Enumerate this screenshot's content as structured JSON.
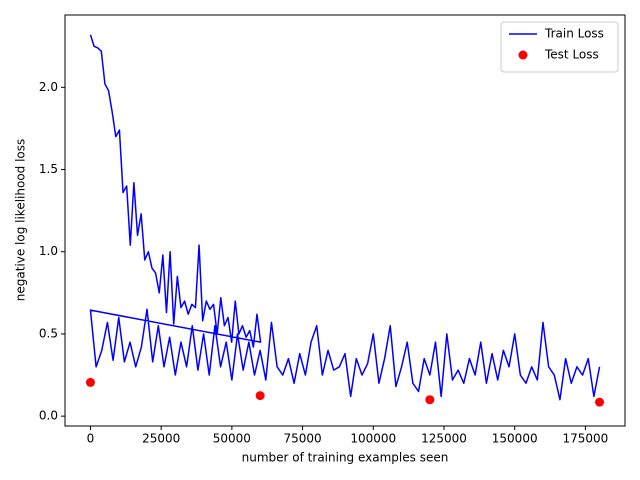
{
  "chart_data": {
    "type": "line",
    "xlabel": "number of training examples seen",
    "ylabel": "negative log likelihood loss",
    "xlim": [
      -9000,
      189000
    ],
    "ylim": [
      -0.06,
      2.44
    ],
    "xticks": [
      0,
      25000,
      50000,
      75000,
      100000,
      125000,
      150000,
      175000
    ],
    "yticks": [
      {
        "value": 0.0,
        "label": "0.0"
      },
      0.5,
      {
        "value": 1.0,
        "label": "1.0"
      },
      1.5,
      {
        "value": 2.0,
        "label": "2.0"
      }
    ],
    "legend": "upper right",
    "series": [
      {
        "name": "Train Loss",
        "type": "line",
        "color": "#0000ff",
        "x": [
          0,
          1280,
          2560,
          3840,
          5120,
          6400,
          7680,
          8960,
          10240,
          11520,
          12800,
          14080,
          15360,
          16640,
          17920,
          19200,
          20480,
          21760,
          23040,
          24320,
          25600,
          26880,
          28160,
          29440,
          30720,
          32000,
          33280,
          34560,
          35840,
          37120,
          38400,
          39680,
          40960,
          42240,
          43520,
          44800,
          46080,
          47360,
          48640,
          49920,
          51200,
          52480,
          53760,
          55040,
          56320,
          57600,
          58880,
          60160,
          0,
          2000,
          4000,
          6000,
          8000,
          10000,
          12000,
          14000,
          16000,
          18000,
          20000,
          22000,
          24000,
          26000,
          28000,
          30000,
          32000,
          34000,
          36000,
          38000,
          40000,
          42000,
          44000,
          46000,
          48000,
          50000,
          52000,
          54000,
          56000,
          58000,
          60000,
          62000,
          64000,
          66000,
          68000,
          70000,
          72000,
          74000,
          76000,
          78000,
          80000,
          82000,
          84000,
          86000,
          88000,
          90000,
          92000,
          94000,
          96000,
          98000,
          100000,
          102000,
          104000,
          106000,
          108000,
          110000,
          112000,
          114000,
          116000,
          118000,
          120000,
          122000,
          124000,
          126000,
          128000,
          130000,
          132000,
          134000,
          136000,
          138000,
          140000,
          142000,
          144000,
          146000,
          148000,
          150000,
          152000,
          154000,
          156000,
          158000,
          160000,
          162000,
          164000,
          166000,
          168000,
          170000,
          172000,
          174000,
          176000,
          178000,
          180000
        ],
        "values": [
          2.32,
          2.25,
          2.24,
          2.22,
          2.02,
          1.98,
          1.85,
          1.7,
          1.74,
          1.36,
          1.4,
          1.04,
          1.42,
          1.1,
          1.23,
          0.95,
          1.0,
          0.9,
          0.87,
          0.75,
          0.98,
          0.63,
          1.0,
          0.56,
          0.85,
          0.66,
          0.7,
          0.62,
          0.68,
          0.66,
          1.04,
          0.58,
          0.7,
          0.65,
          0.68,
          0.5,
          0.72,
          0.55,
          0.6,
          0.45,
          0.7,
          0.5,
          0.55,
          0.48,
          0.52,
          0.42,
          0.62,
          0.45,
          0.645,
          0.3,
          0.4,
          0.57,
          0.34,
          0.6,
          0.33,
          0.45,
          0.3,
          0.42,
          0.65,
          0.33,
          0.55,
          0.3,
          0.48,
          0.25,
          0.45,
          0.3,
          0.55,
          0.28,
          0.5,
          0.25,
          0.55,
          0.3,
          0.45,
          0.22,
          0.5,
          0.28,
          0.45,
          0.25,
          0.4,
          0.22,
          0.57,
          0.3,
          0.25,
          0.35,
          0.2,
          0.38,
          0.25,
          0.45,
          0.55,
          0.25,
          0.4,
          0.28,
          0.3,
          0.38,
          0.12,
          0.35,
          0.25,
          0.32,
          0.5,
          0.2,
          0.35,
          0.55,
          0.18,
          0.3,
          0.45,
          0.2,
          0.15,
          0.35,
          0.25,
          0.45,
          0.12,
          0.5,
          0.22,
          0.28,
          0.2,
          0.35,
          0.25,
          0.45,
          0.2,
          0.38,
          0.22,
          0.4,
          0.3,
          0.5,
          0.25,
          0.2,
          0.3,
          0.22,
          0.57,
          0.3,
          0.25,
          0.1,
          0.35,
          0.2,
          0.3,
          0.25,
          0.35,
          0.12,
          0.3
        ]
      },
      {
        "name": "Test Loss",
        "type": "scatter",
        "color": "#ff0000",
        "x": [
          0,
          60000,
          120000,
          180000
        ],
        "values": [
          0.205,
          0.125,
          0.1,
          0.085
        ]
      }
    ]
  }
}
